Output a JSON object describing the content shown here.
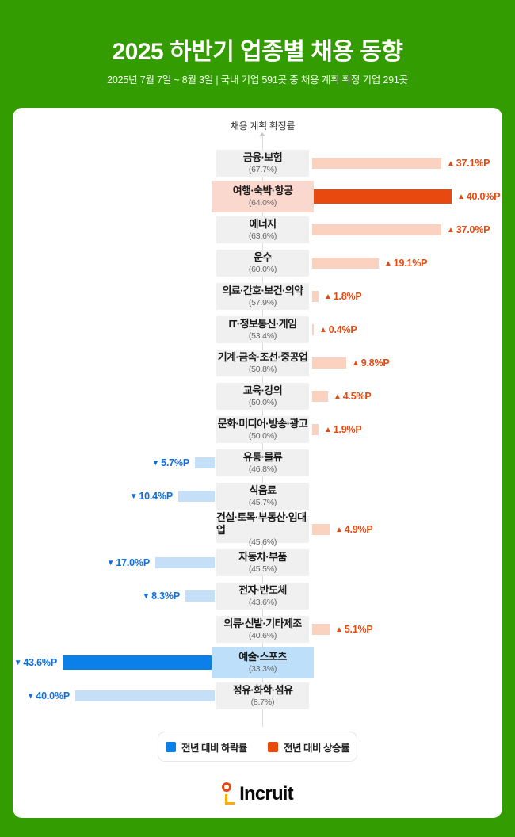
{
  "header": {
    "title": "2025 하반기 업종별 채용 동향",
    "subtitle": "2025년 7월 7일 ~ 8월 3일  |  국내 기업 591곳 중 채용 계획 확정 기업 291곳"
  },
  "chart_data": {
    "type": "bar",
    "orientation": "horizontal-diverging",
    "axis_label": "채용 계획 확정률",
    "unit": "%P",
    "legend_position": "bottom",
    "rows": [
      {
        "industry": "금융·보험",
        "rate_label": "(67.7%)",
        "rate": 67.7,
        "change": 37.1,
        "direction": "up",
        "value_label": "37.1%P",
        "highlight": false
      },
      {
        "industry": "여행·숙박·항공",
        "rate_label": "(64.0%)",
        "rate": 64.0,
        "change": 40.0,
        "direction": "up",
        "value_label": "40.0%P",
        "highlight": true
      },
      {
        "industry": "에너지",
        "rate_label": "(63.6%)",
        "rate": 63.6,
        "change": 37.0,
        "direction": "up",
        "value_label": "37.0%P",
        "highlight": false
      },
      {
        "industry": "운수",
        "rate_label": "(60.0%)",
        "rate": 60.0,
        "change": 19.1,
        "direction": "up",
        "value_label": "19.1%P",
        "highlight": false
      },
      {
        "industry": "의료·간호·보건·의약",
        "rate_label": "(57.9%)",
        "rate": 57.9,
        "change": 1.8,
        "direction": "up",
        "value_label": "1.8%P",
        "highlight": false
      },
      {
        "industry": "IT·정보통신·게임",
        "rate_label": "(53.4%)",
        "rate": 53.4,
        "change": 0.4,
        "direction": "up",
        "value_label": "0.4%P",
        "highlight": false
      },
      {
        "industry": "기계·금속·조선·중공업",
        "rate_label": "(50.8%)",
        "rate": 50.8,
        "change": 9.8,
        "direction": "up",
        "value_label": "9.8%P",
        "highlight": false
      },
      {
        "industry": "교육·강의",
        "rate_label": "(50.0%)",
        "rate": 50.0,
        "change": 4.5,
        "direction": "up",
        "value_label": "4.5%P",
        "highlight": false
      },
      {
        "industry": "문화·미디어·방송·광고",
        "rate_label": "(50.0%)",
        "rate": 50.0,
        "change": 1.9,
        "direction": "up",
        "value_label": "1.9%P",
        "highlight": false
      },
      {
        "industry": "유통·물류",
        "rate_label": "(46.8%)",
        "rate": 46.8,
        "change": 5.7,
        "direction": "down",
        "value_label": "5.7%P",
        "highlight": false
      },
      {
        "industry": "식음료",
        "rate_label": "(45.7%)",
        "rate": 45.7,
        "change": 10.4,
        "direction": "down",
        "value_label": "10.4%P",
        "highlight": false
      },
      {
        "industry": "건설·토목·부동산·임대업",
        "rate_label": "(45.6%)",
        "rate": 45.6,
        "change": 4.9,
        "direction": "up",
        "value_label": "4.9%P",
        "highlight": false
      },
      {
        "industry": "자동차·부품",
        "rate_label": "(45.5%)",
        "rate": 45.5,
        "change": 17.0,
        "direction": "down",
        "value_label": "17.0%P",
        "highlight": false
      },
      {
        "industry": "전자·반도체",
        "rate_label": "(43.6%)",
        "rate": 43.6,
        "change": 8.3,
        "direction": "down",
        "value_label": "8.3%P",
        "highlight": false
      },
      {
        "industry": "의류·신발·기타제조",
        "rate_label": "(40.6%)",
        "rate": 40.6,
        "change": 5.1,
        "direction": "up",
        "value_label": "5.1%P",
        "highlight": false
      },
      {
        "industry": "예술·스포츠",
        "rate_label": "(33.3%)",
        "rate": 33.3,
        "change": 43.6,
        "direction": "down",
        "value_label": "43.6%P",
        "highlight": true
      },
      {
        "industry": "정유·화학·섬유",
        "rate_label": "(8.7%)",
        "rate": 8.7,
        "change": 40.0,
        "direction": "down",
        "value_label": "40.0%P",
        "highlight": false
      }
    ],
    "legend": [
      {
        "label": "전년 대비 하락률",
        "color": "#0B80E8",
        "direction": "down"
      },
      {
        "label": "전년 대비 상승률",
        "color": "#E8490F",
        "direction": "up"
      }
    ],
    "markers": {
      "up": "▲",
      "down": "▼"
    }
  },
  "footer": {
    "logo_text": "Incruit"
  },
  "colors": {
    "background_green": "#339C00",
    "card": "#FFFFFF",
    "up_solid": "#E8490F",
    "up_light": "#FAD2BF",
    "down_solid": "#0B80E8",
    "down_light": "#C6DFF8",
    "label_box": "#F0F0F0",
    "highlight_up_box": "#FBD8CE",
    "highlight_down_box": "#BEDFFA",
    "up_text": "#E8490F",
    "down_text": "#1070E0"
  }
}
